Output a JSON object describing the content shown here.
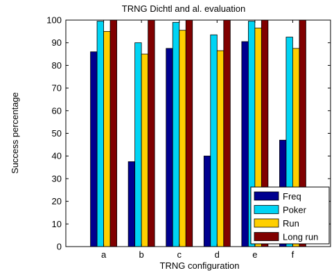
{
  "chart_data": {
    "type": "bar",
    "title": "TRNG Dichtl and al. evaluation",
    "xlabel": "TRNG configuration",
    "ylabel": "Success percentage",
    "ylim": [
      0,
      100
    ],
    "yticks": [
      0,
      10,
      20,
      30,
      40,
      50,
      60,
      70,
      80,
      90,
      100
    ],
    "categories": [
      "a",
      "b",
      "c",
      "d",
      "e",
      "f"
    ],
    "series": [
      {
        "name": "Freq",
        "color": "#00008f",
        "values": [
          86,
          37.5,
          87.5,
          40,
          90.5,
          47
        ]
      },
      {
        "name": "Poker",
        "color": "#00d4f4",
        "values": [
          99.5,
          90,
          99,
          93.5,
          99.5,
          92.5
        ]
      },
      {
        "name": "Run",
        "color": "#ffcf00",
        "values": [
          95,
          85,
          95.5,
          86.5,
          96.5,
          87.5
        ]
      },
      {
        "name": "Long run",
        "color": "#800000",
        "values": [
          100,
          100,
          100,
          100,
          100,
          100
        ]
      }
    ],
    "grid": false,
    "legend_position": "bottom-right"
  }
}
